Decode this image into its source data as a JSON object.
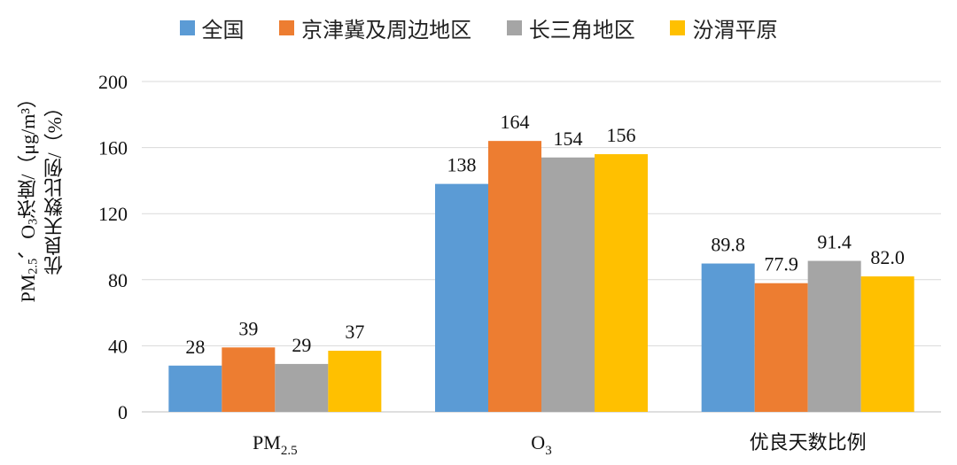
{
  "legend": [
    {
      "name": "全国",
      "color": "#5b9bd5"
    },
    {
      "name": "京津冀及周边地区",
      "color": "#ed7d31"
    },
    {
      "name": "长三角地区",
      "color": "#a5a5a5"
    },
    {
      "name": "汾渭平原",
      "color": "#ffc000"
    }
  ],
  "ylabel": {
    "line1_prefix": "PM",
    "line1_sub": "2.5",
    "line1_mid": "、O",
    "line1_sub2": "3",
    "line1_suffix": "浓度/（μg/m³）",
    "line2": "优良天数比例/（%）"
  },
  "chart_data": {
    "type": "bar",
    "categories": [
      "PM2.5",
      "O3",
      "优良天数比例"
    ],
    "category_labels": [
      {
        "base": "PM",
        "sub": "2.5"
      },
      {
        "base": "O",
        "sub": "3"
      },
      {
        "base": "优良天数比例",
        "sub": ""
      }
    ],
    "series": [
      {
        "name": "全国",
        "values": [
          28,
          138,
          89.8
        ],
        "labels": [
          "28",
          "138",
          "89.8"
        ],
        "color": "#5b9bd5"
      },
      {
        "name": "京津冀及周边地区",
        "values": [
          39,
          164,
          77.9
        ],
        "labels": [
          "39",
          "164",
          "77.9"
        ],
        "color": "#ed7d31"
      },
      {
        "name": "长三角地区",
        "values": [
          29,
          154,
          91.4
        ],
        "labels": [
          "29",
          "154",
          "91.4"
        ],
        "color": "#a5a5a5"
      },
      {
        "name": "汾渭平原",
        "values": [
          37,
          156,
          82.0
        ],
        "labels": [
          "37",
          "156",
          "82.0"
        ],
        "color": "#ffc000"
      }
    ],
    "ylim": [
      0,
      200
    ],
    "yticks": [
      0,
      40,
      80,
      120,
      160,
      200
    ],
    "grid": true,
    "legend_position": "top"
  }
}
